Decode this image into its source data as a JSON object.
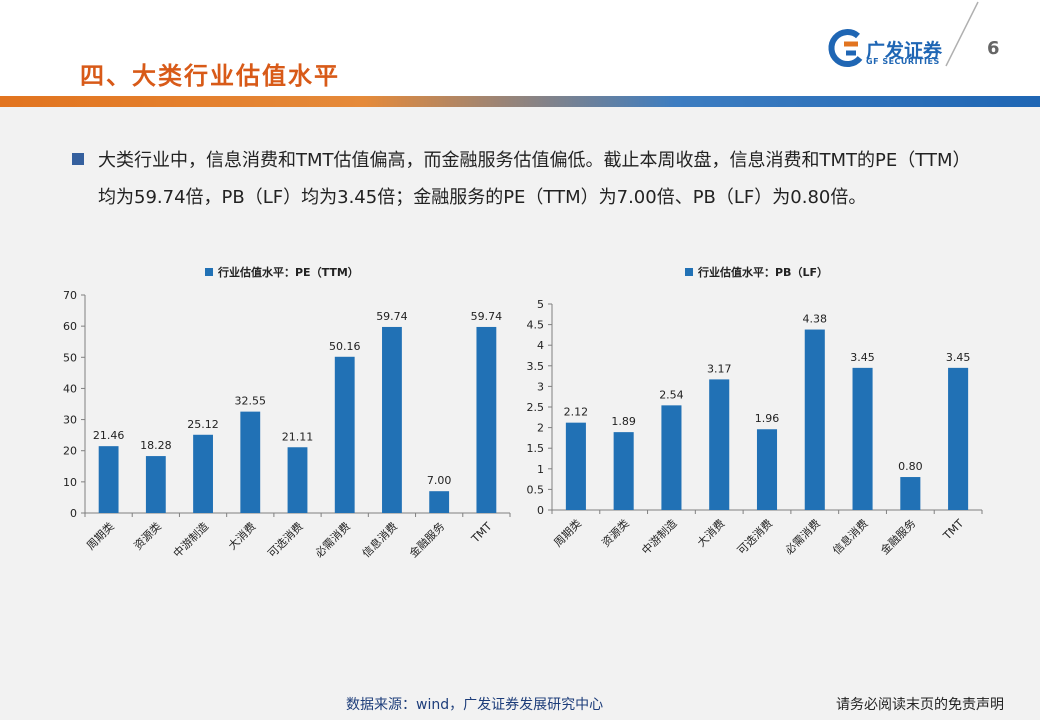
{
  "header": {
    "title": "四、大类行业估值水平",
    "logo_text": "广发证券",
    "logo_sub": "GF SECURITIES",
    "page_number": "6"
  },
  "summary": {
    "text": "大类行业中，信息消费和TMT估值偏高，而金融服务估值偏低。截止本周收盘，信息消费和TMT的PE（TTM）均为59.74倍，PB（LF）均为3.45倍；金融服务的PE（TTM）为7.00倍、PB（LF）为0.80倍。"
  },
  "footer": {
    "source": "数据来源：wind，广发证券发展研究中心",
    "disclaimer": "请务必阅读末页的免责声明"
  },
  "colors": {
    "accent_orange": "#d85a18",
    "brand_blue": "#1f66b4",
    "bar_blue": "#2171b5"
  },
  "chart_data": [
    {
      "type": "bar",
      "legend": "行业估值水平：PE（TTM）",
      "legend_position": "top",
      "categories": [
        "周期类",
        "资源类",
        "中游制造",
        "大消费",
        "可选消费",
        "必需消费",
        "信息消费",
        "金融服务",
        "TMT"
      ],
      "values": [
        21.46,
        18.28,
        25.12,
        32.55,
        21.11,
        50.16,
        59.74,
        7.0,
        59.74
      ],
      "value_labels": [
        "21.46",
        "18.28",
        "25.12",
        "32.55",
        "21.11",
        "50.16",
        "59.74",
        "7.00",
        "59.74"
      ],
      "ylim": [
        0,
        70
      ],
      "yticks": [
        "0",
        "10",
        "20",
        "30",
        "40",
        "50",
        "60",
        "70"
      ],
      "grid": false
    },
    {
      "type": "bar",
      "legend": "行业估值水平：PB（LF）",
      "legend_position": "top",
      "categories": [
        "周期类",
        "资源类",
        "中游制造",
        "大消费",
        "可选消费",
        "必需消费",
        "信息消费",
        "金融服务",
        "TMT"
      ],
      "values": [
        2.12,
        1.89,
        2.54,
        3.17,
        1.96,
        4.38,
        3.45,
        0.8,
        3.45
      ],
      "value_labels": [
        "2.12",
        "1.89",
        "2.54",
        "3.17",
        "1.96",
        "4.38",
        "3.45",
        "0.80",
        "3.45"
      ],
      "ylim": [
        0,
        5
      ],
      "yticks": [
        "0",
        "0.5",
        "1",
        "1.5",
        "2",
        "2.5",
        "3",
        "3.5",
        "4",
        "4.5",
        "5"
      ],
      "grid": false
    }
  ]
}
